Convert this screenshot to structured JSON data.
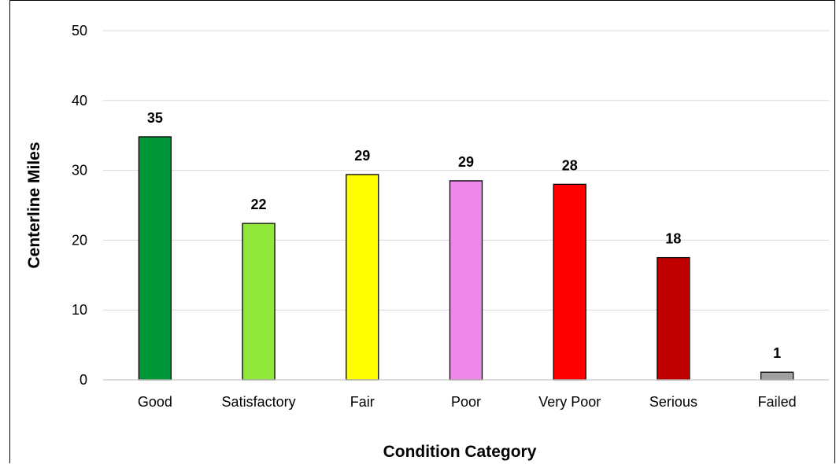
{
  "chart_data": {
    "type": "bar",
    "categories": [
      "Good",
      "Satisfactory",
      "Fair",
      "Poor",
      "Very Poor",
      "Serious",
      "Failed"
    ],
    "values": [
      34.8,
      22.4,
      29.4,
      28.5,
      28.0,
      17.5,
      1.1
    ],
    "data_labels": [
      "35",
      "22",
      "29",
      "29",
      "28",
      "18",
      "1"
    ],
    "colors": [
      "#009739",
      "#92E83A",
      "#FFFF00",
      "#EE88E8",
      "#FF0000",
      "#C00000",
      "#A0A0A0"
    ],
    "xlabel": "Condition Category",
    "ylabel": "Centerline Miles",
    "ylim": [
      0,
      50
    ],
    "yticks": [
      "0",
      "10",
      "20",
      "30",
      "40",
      "50"
    ],
    "grid": true,
    "legend": "none"
  }
}
